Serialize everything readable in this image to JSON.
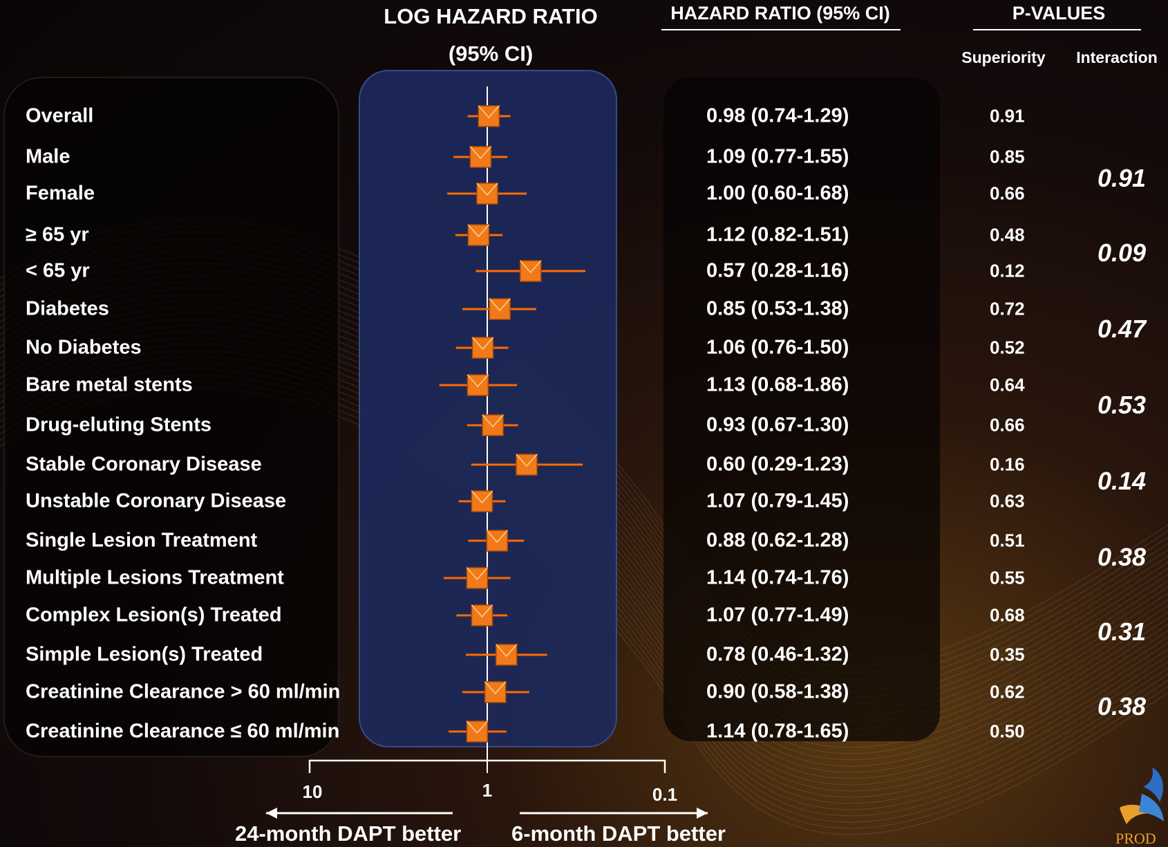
{
  "headers": {
    "log_hr_line1": "LOG HAZARD RATIO",
    "log_hr_line2": "(95% CI)",
    "hr": "HAZARD RATIO (95% CI)",
    "pvalues": "P-VALUES",
    "superiority": "Superiority",
    "interaction": "Interaction"
  },
  "chart_data": {
    "type": "scatter",
    "x_scale": "log-reversed",
    "xlim": [
      10,
      0.1
    ],
    "x_ticks": [
      "10",
      "1",
      "0.1"
    ],
    "reference_line": 1,
    "left_direction": "24-month DAPT better",
    "right_direction": "6-month DAPT better",
    "rows": [
      {
        "label": "Overall",
        "hr": 0.98,
        "lo": 0.74,
        "hi": 1.29,
        "hr_text": "0.98 (0.74-1.29)",
        "p_sup": "0.91"
      },
      {
        "label": "Male",
        "hr": 1.09,
        "lo": 0.77,
        "hi": 1.55,
        "hr_text": "1.09 (0.77-1.55)",
        "p_sup": "0.85"
      },
      {
        "label": "Female",
        "hr": 1.0,
        "lo": 0.6,
        "hi": 1.68,
        "hr_text": "1.00 (0.60-1.68)",
        "p_sup": "0.66"
      },
      {
        "label": "≥ 65 yr",
        "hr": 1.12,
        "lo": 0.82,
        "hi": 1.51,
        "hr_text": "1.12 (0.82-1.51)",
        "p_sup": "0.48"
      },
      {
        "label": "< 65 yr",
        "hr": 0.57,
        "lo": 0.28,
        "hi": 1.16,
        "hr_text": "0.57 (0.28-1.16)",
        "p_sup": "0.12"
      },
      {
        "label": "Diabetes",
        "hr": 0.85,
        "lo": 0.53,
        "hi": 1.38,
        "hr_text": "0.85 (0.53-1.38)",
        "p_sup": "0.72"
      },
      {
        "label": "No Diabetes",
        "hr": 1.06,
        "lo": 0.76,
        "hi": 1.5,
        "hr_text": "1.06 (0.76-1.50)",
        "p_sup": "0.52"
      },
      {
        "label": "Bare metal stents",
        "hr": 1.13,
        "lo": 0.68,
        "hi": 1.86,
        "hr_text": "1.13 (0.68-1.86)",
        "p_sup": "0.64"
      },
      {
        "label": "Drug-eluting Stents",
        "hr": 0.93,
        "lo": 0.67,
        "hi": 1.3,
        "hr_text": "0.93 (0.67-1.30)",
        "p_sup": "0.66"
      },
      {
        "label": "Stable Coronary Disease",
        "hr": 0.6,
        "lo": 0.29,
        "hi": 1.23,
        "hr_text": "0.60 (0.29-1.23)",
        "p_sup": "0.16"
      },
      {
        "label": "Unstable Coronary Disease",
        "hr": 1.07,
        "lo": 0.79,
        "hi": 1.45,
        "hr_text": "1.07 (0.79-1.45)",
        "p_sup": "0.63"
      },
      {
        "label": "Single Lesion Treatment",
        "hr": 0.88,
        "lo": 0.62,
        "hi": 1.28,
        "hr_text": "0.88 (0.62-1.28)",
        "p_sup": "0.51"
      },
      {
        "label": "Multiple Lesions Treatment",
        "hr": 1.14,
        "lo": 0.74,
        "hi": 1.76,
        "hr_text": "1.14 (0.74-1.76)",
        "p_sup": "0.55"
      },
      {
        "label": "Complex Lesion(s) Treated",
        "hr": 1.07,
        "lo": 0.77,
        "hi": 1.49,
        "hr_text": "1.07 (0.77-1.49)",
        "p_sup": "0.68"
      },
      {
        "label": "Simple Lesion(s) Treated",
        "hr": 0.78,
        "lo": 0.46,
        "hi": 1.32,
        "hr_text": "0.78 (0.46-1.32)",
        "p_sup": "0.35"
      },
      {
        "label": "Creatinine Clearance > 60 ml/min",
        "hr": 0.9,
        "lo": 0.58,
        "hi": 1.38,
        "hr_text": "0.90 (0.58-1.38)",
        "p_sup": "0.62"
      },
      {
        "label": "Creatinine Clearance ≤ 60 ml/min",
        "hr": 1.14,
        "lo": 0.78,
        "hi": 1.65,
        "hr_text": "1.14 (0.78-1.65)",
        "p_sup": "0.50"
      }
    ],
    "interaction_pvalues": [
      {
        "value": "0.91",
        "rows": [
          1,
          2
        ]
      },
      {
        "value": "0.09",
        "rows": [
          3,
          4
        ]
      },
      {
        "value": "0.47",
        "rows": [
          5,
          6
        ]
      },
      {
        "value": "0.53",
        "rows": [
          7,
          8
        ]
      },
      {
        "value": "0.14",
        "rows": [
          9,
          10
        ]
      },
      {
        "value": "0.38",
        "rows": [
          11,
          12
        ]
      },
      {
        "value": "0.31",
        "rows": [
          13,
          14
        ]
      },
      {
        "value": "0.38",
        "rows": [
          15,
          16
        ]
      }
    ]
  },
  "colors": {
    "marker": "#f07a1a",
    "ci_line": "#ff6a00",
    "panel": "#1c2a5e",
    "text": "#ffffff"
  },
  "logo": {
    "text": "PROD"
  }
}
